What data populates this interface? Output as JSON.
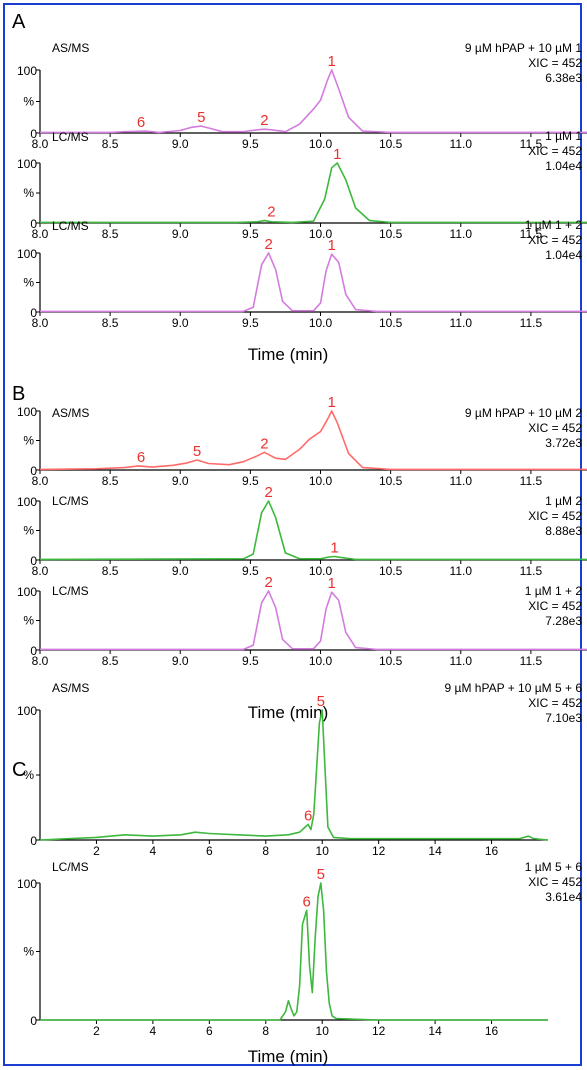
{
  "figure": {
    "panels": [
      {
        "letter": "A",
        "time_label": "Time (min)"
      },
      {
        "letter": "B",
        "time_label": "Time (min)"
      },
      {
        "letter": "C",
        "time_label": "Time (min)"
      }
    ]
  },
  "chart_data": [
    {
      "type": "line",
      "panel": "A",
      "method": "AS/MS",
      "info": [
        "9 µM hPAP + 10 µM 1",
        "XIC = 452",
        "6.38e3"
      ],
      "xlim": [
        8.0,
        11.9
      ],
      "ylim": [
        0,
        100
      ],
      "xticks": [
        "8.0",
        "8.5",
        "9.0",
        "9.5",
        "10.0",
        "10.5",
        "11.0",
        "11.5"
      ],
      "ytick_labels": [
        "0",
        "%",
        "100"
      ],
      "color": "#d47be0",
      "x": [
        8.0,
        8.5,
        8.6,
        8.75,
        8.85,
        9.0,
        9.08,
        9.15,
        9.22,
        9.3,
        9.45,
        9.55,
        9.6,
        9.65,
        9.75,
        9.85,
        9.9,
        9.95,
        10.0,
        10.05,
        10.08,
        10.13,
        10.2,
        10.3,
        10.5,
        11.0,
        11.9
      ],
      "y": [
        1,
        1,
        2,
        3,
        1,
        4,
        9,
        11,
        7,
        2,
        2,
        5,
        6,
        5,
        2,
        14,
        26,
        38,
        52,
        84,
        100,
        70,
        25,
        3,
        1,
        1,
        1
      ],
      "peak_labels": [
        {
          "label": "6",
          "x": 8.72,
          "y": 3
        },
        {
          "label": "5",
          "x": 9.15,
          "y": 11
        },
        {
          "label": "2",
          "x": 9.6,
          "y": 6
        },
        {
          "label": "1",
          "x": 10.08,
          "y": 100
        }
      ]
    },
    {
      "type": "line",
      "panel": "A",
      "method": "LC/MS",
      "info": [
        "1 µM 1",
        "XIC = 452",
        "1.04e4"
      ],
      "xlim": [
        8.0,
        11.9
      ],
      "ylim": [
        0,
        100
      ],
      "xticks": [
        "8.0",
        "8.5",
        "9.0",
        "9.5",
        "10.0",
        "10.5",
        "11.0",
        "11.5"
      ],
      "ytick_labels": [
        "0",
        "%",
        "100"
      ],
      "color": "#3db83d",
      "x": [
        8.0,
        9.4,
        9.55,
        9.6,
        9.65,
        9.8,
        9.95,
        10.03,
        10.08,
        10.12,
        10.18,
        10.25,
        10.35,
        10.5,
        11.9
      ],
      "y": [
        1,
        1,
        2,
        4,
        2,
        1,
        3,
        40,
        92,
        100,
        72,
        25,
        4,
        1,
        1
      ],
      "peak_labels": [
        {
          "label": "2",
          "x": 9.65,
          "y": 4
        },
        {
          "label": "1",
          "x": 10.12,
          "y": 100
        }
      ]
    },
    {
      "type": "line",
      "panel": "A",
      "method": "LC/MS",
      "info": [
        "1 µM 1 + 2",
        "XIC = 452",
        "1.04e4"
      ],
      "xlim": [
        8.0,
        11.9
      ],
      "ylim": [
        0,
        100
      ],
      "xticks": [
        "8.0",
        "8.5",
        "9.0",
        "9.5",
        "10.0",
        "10.5",
        "11.0",
        "11.5"
      ],
      "ytick_labels": [
        "0",
        "%",
        "100"
      ],
      "color": "#d47be0",
      "x": [
        8.0,
        9.45,
        9.52,
        9.58,
        9.63,
        9.68,
        9.73,
        9.8,
        9.95,
        10.0,
        10.04,
        10.08,
        10.13,
        10.18,
        10.25,
        10.4,
        11.9
      ],
      "y": [
        1,
        1,
        8,
        80,
        100,
        72,
        18,
        2,
        2,
        15,
        70,
        98,
        84,
        30,
        4,
        1,
        1
      ],
      "peak_labels": [
        {
          "label": "2",
          "x": 9.63,
          "y": 100
        },
        {
          "label": "1",
          "x": 10.08,
          "y": 98
        }
      ]
    },
    {
      "type": "line",
      "panel": "B",
      "method": "AS/MS",
      "info": [
        "9 µM hPAP + 10 µM 2",
        "XIC = 452",
        "3.72e3"
      ],
      "xlim": [
        8.0,
        11.9
      ],
      "ylim": [
        0,
        100
      ],
      "xticks": [
        "8.0",
        "8.5",
        "9.0",
        "9.5",
        "10.0",
        "10.5",
        "11.0",
        "11.5"
      ],
      "ytick_labels": [
        "0",
        "%",
        "100"
      ],
      "color": "#ff6b6b",
      "x": [
        8.0,
        8.4,
        8.6,
        8.7,
        8.8,
        8.95,
        9.05,
        9.12,
        9.2,
        9.35,
        9.45,
        9.55,
        9.6,
        9.68,
        9.75,
        9.85,
        9.92,
        10.0,
        10.05,
        10.08,
        10.12,
        10.2,
        10.3,
        10.5,
        11.9
      ],
      "y": [
        1,
        2,
        4,
        7,
        5,
        8,
        12,
        17,
        11,
        9,
        14,
        24,
        30,
        20,
        18,
        35,
        52,
        65,
        86,
        100,
        80,
        28,
        4,
        1,
        1
      ],
      "peak_labels": [
        {
          "label": "6",
          "x": 8.72,
          "y": 7
        },
        {
          "label": "5",
          "x": 9.12,
          "y": 17
        },
        {
          "label": "2",
          "x": 9.6,
          "y": 30
        },
        {
          "label": "1",
          "x": 10.08,
          "y": 100
        }
      ]
    },
    {
      "type": "line",
      "panel": "B",
      "method": "LC/MS",
      "info": [
        "1 µM 2",
        "XIC = 452",
        "8.88e3"
      ],
      "xlim": [
        8.0,
        11.9
      ],
      "ylim": [
        0,
        100
      ],
      "xticks": [
        "8.0",
        "8.5",
        "9.0",
        "9.5",
        "10.0",
        "10.5",
        "11.0",
        "11.5"
      ],
      "ytick_labels": [
        "0",
        "%",
        "100"
      ],
      "color": "#3db83d",
      "x": [
        8.0,
        9.45,
        9.52,
        9.58,
        9.63,
        9.68,
        9.75,
        9.85,
        10.0,
        10.06,
        10.1,
        10.15,
        10.25,
        11.9
      ],
      "y": [
        1,
        2,
        10,
        80,
        100,
        72,
        12,
        2,
        2,
        5,
        6,
        4,
        1,
        1
      ],
      "peak_labels": [
        {
          "label": "2",
          "x": 9.63,
          "y": 100
        },
        {
          "label": "1",
          "x": 10.1,
          "y": 6
        }
      ]
    },
    {
      "type": "line",
      "panel": "B",
      "method": "LC/MS",
      "info": [
        "1 µM 1 + 2",
        "XIC = 452",
        "7.28e3"
      ],
      "xlim": [
        8.0,
        11.9
      ],
      "ylim": [
        0,
        100
      ],
      "xticks": [
        "8.0",
        "8.5",
        "9.0",
        "9.5",
        "10.0",
        "10.5",
        "11.0",
        "11.5"
      ],
      "ytick_labels": [
        "0",
        "%",
        "100"
      ],
      "color": "#d47be0",
      "x": [
        8.0,
        9.45,
        9.52,
        9.58,
        9.63,
        9.68,
        9.73,
        9.8,
        9.95,
        10.0,
        10.04,
        10.08,
        10.13,
        10.18,
        10.25,
        10.4,
        11.9
      ],
      "y": [
        1,
        1,
        8,
        80,
        100,
        72,
        18,
        2,
        2,
        15,
        70,
        98,
        84,
        30,
        4,
        1,
        1
      ],
      "peak_labels": [
        {
          "label": "2",
          "x": 9.63,
          "y": 100
        },
        {
          "label": "1",
          "x": 10.08,
          "y": 98
        }
      ]
    },
    {
      "type": "line",
      "panel": "C",
      "method": "AS/MS",
      "info": [
        "9 µM hPAP + 10 µM 5 + 6",
        "XIC = 452",
        "7.10e3"
      ],
      "xlim": [
        0,
        18
      ],
      "ylim": [
        0,
        100
      ],
      "xticks": [
        "2",
        "4",
        "6",
        "8",
        "10",
        "12",
        "14",
        "16"
      ],
      "ytick_labels": [
        "0",
        "%",
        "100"
      ],
      "color": "#3db83d",
      "x": [
        0,
        1,
        2,
        3,
        4,
        5,
        5.5,
        6,
        7,
        8,
        8.8,
        9.2,
        9.4,
        9.5,
        9.6,
        9.7,
        9.8,
        9.9,
        10.0,
        10.1,
        10.2,
        10.4,
        11,
        14,
        17,
        17.3,
        17.5,
        18
      ],
      "y": [
        0,
        1,
        2,
        4,
        3,
        4,
        6,
        5,
        4,
        3,
        4,
        6,
        10,
        12,
        8,
        20,
        55,
        90,
        100,
        55,
        10,
        2,
        1,
        1,
        1,
        3,
        1,
        0
      ],
      "peak_labels": [
        {
          "label": "6",
          "x": 9.5,
          "y": 12
        },
        {
          "label": "5",
          "x": 9.95,
          "y": 100
        }
      ]
    },
    {
      "type": "line",
      "panel": "C",
      "method": "LC/MS",
      "info": [
        "1 µM 5 + 6",
        "XIC = 452",
        "3.61e4"
      ],
      "xlim": [
        0,
        18
      ],
      "ylim": [
        0,
        100
      ],
      "xticks": [
        "2",
        "4",
        "6",
        "8",
        "10",
        "12",
        "14",
        "16"
      ],
      "ytick_labels": [
        "0",
        "%",
        "100"
      ],
      "color": "#3db83d",
      "x": [
        0,
        8.5,
        8.7,
        8.8,
        8.9,
        9.0,
        9.1,
        9.2,
        9.3,
        9.45,
        9.55,
        9.65,
        9.75,
        9.85,
        9.95,
        10.05,
        10.15,
        10.25,
        10.35,
        10.5,
        12,
        18
      ],
      "y": [
        0,
        0,
        6,
        14,
        8,
        3,
        6,
        25,
        70,
        80,
        40,
        20,
        60,
        90,
        100,
        80,
        35,
        12,
        3,
        1,
        0,
        0
      ],
      "peak_labels": [
        {
          "label": "6",
          "x": 9.45,
          "y": 80
        },
        {
          "label": "5",
          "x": 9.95,
          "y": 100
        }
      ]
    }
  ]
}
